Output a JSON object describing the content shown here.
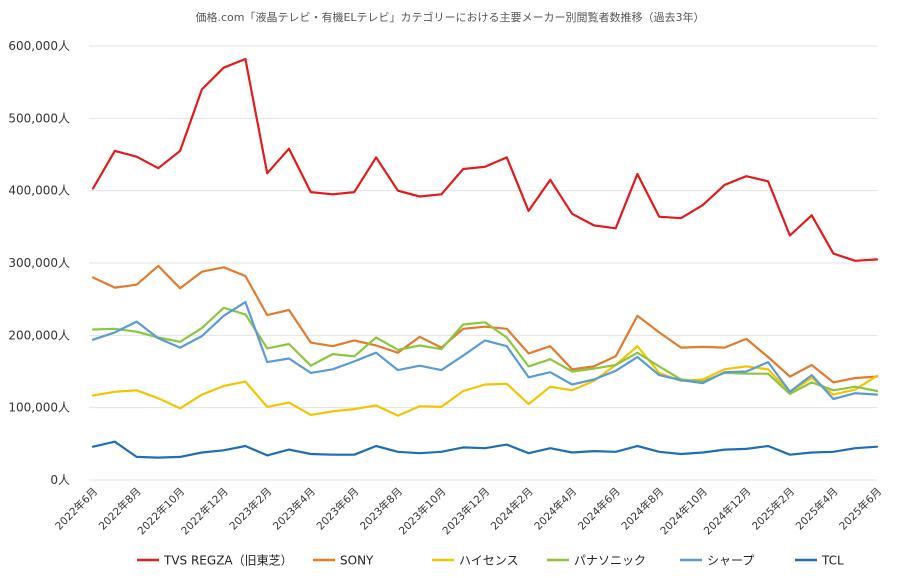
{
  "chart_data": {
    "type": "line",
    "title": "価格.com「液晶テレビ・有機ELテレビ」カテゴリーにおける主要メーカー別閲覧者数推移（過去3年）",
    "y_unit_suffix": "人",
    "ylim": [
      0,
      600000
    ],
    "y_ticks": [
      0,
      100000,
      200000,
      300000,
      400000,
      500000,
      600000
    ],
    "y_tick_labels": [
      "0人",
      "100,000人",
      "200,000人",
      "300,000人",
      "400,000人",
      "500,000人",
      "600,000人"
    ],
    "grid": true,
    "legend_position": "bottom",
    "x": [
      "2022年6月",
      "2022年7月",
      "2022年8月",
      "2022年9月",
      "2022年10月",
      "2022年11月",
      "2022年12月",
      "2023年1月",
      "2023年2月",
      "2023年3月",
      "2023年4月",
      "2023年5月",
      "2023年6月",
      "2023年7月",
      "2023年8月",
      "2023年9月",
      "2023年10月",
      "2023年11月",
      "2023年12月",
      "2024年1月",
      "2024年2月",
      "2024年3月",
      "2024年4月",
      "2024年5月",
      "2024年6月",
      "2024年7月",
      "2024年8月",
      "2024年9月",
      "2024年10月",
      "2024年11月",
      "2024年12月",
      "2025年1月",
      "2025年2月",
      "2025年3月",
      "2025年4月",
      "2025年5月",
      "2025年6月"
    ],
    "x_tick_labels": [
      "2022年6月",
      "2022年8月",
      "2022年10月",
      "2022年12月",
      "2023年2月",
      "2023年4月",
      "2023年6月",
      "2023年8月",
      "2023年10月",
      "2023年12月",
      "2024年2月",
      "2024年4月",
      "2024年6月",
      "2024年8月",
      "2024年10月",
      "2024年12月",
      "2025年2月",
      "2025年4月",
      "2025年6月"
    ],
    "series": [
      {
        "name": "TVS REGZA（旧東芝）",
        "color": "#e31a1c",
        "values": [
          403000,
          455000,
          447000,
          431000,
          455000,
          540000,
          570000,
          582000,
          424000,
          458000,
          398000,
          395000,
          398000,
          446000,
          400000,
          392000,
          395000,
          430000,
          433000,
          446000,
          372000,
          415000,
          368000,
          352000,
          348000,
          423000,
          364000,
          362000,
          380000,
          408000,
          420000,
          413000,
          338000,
          366000,
          313000,
          303000,
          305000
        ]
      },
      {
        "name": "SONY",
        "color": "#e07b30",
        "values": [
          280000,
          266000,
          270000,
          296000,
          265000,
          288000,
          294000,
          282000,
          228000,
          235000,
          190000,
          185000,
          193000,
          186000,
          176000,
          198000,
          183000,
          209000,
          212000,
          209000,
          175000,
          185000,
          153000,
          157000,
          171000,
          227000,
          204000,
          183000,
          184000,
          183000,
          195000,
          170000,
          143000,
          159000,
          135000,
          141000,
          143000
        ]
      },
      {
        "name": "ハイセンス",
        "color": "#f5c400",
        "values": [
          117000,
          122000,
          124000,
          113000,
          99000,
          118000,
          130000,
          136000,
          101000,
          107000,
          90000,
          95000,
          98000,
          103000,
          89000,
          102000,
          101000,
          123000,
          132000,
          133000,
          105000,
          129000,
          124000,
          137000,
          159000,
          185000,
          148000,
          137000,
          139000,
          153000,
          157000,
          153000,
          121000,
          141000,
          118000,
          125000,
          144000
        ]
      },
      {
        "name": "パナソニック",
        "color": "#8cc63f",
        "values": [
          208000,
          209000,
          205000,
          197000,
          191000,
          210000,
          238000,
          229000,
          182000,
          188000,
          158000,
          174000,
          171000,
          197000,
          180000,
          186000,
          181000,
          215000,
          218000,
          197000,
          157000,
          167000,
          150000,
          154000,
          159000,
          176000,
          157000,
          139000,
          136000,
          148000,
          147000,
          147000,
          119000,
          135000,
          124000,
          129000,
          123000
        ]
      },
      {
        "name": "シャープ",
        "color": "#5b9bd5",
        "values": [
          194000,
          204000,
          219000,
          196000,
          183000,
          199000,
          227000,
          246000,
          163000,
          168000,
          148000,
          153000,
          164000,
          176000,
          152000,
          158000,
          152000,
          172000,
          193000,
          185000,
          142000,
          149000,
          132000,
          139000,
          151000,
          170000,
          145000,
          138000,
          134000,
          149000,
          150000,
          163000,
          122000,
          145000,
          112000,
          120000,
          118000
        ]
      },
      {
        "name": "TCL",
        "color": "#1f6db5",
        "values": [
          46000,
          53000,
          32000,
          31000,
          32000,
          38000,
          41000,
          47000,
          34000,
          42000,
          36000,
          35000,
          35000,
          47000,
          39000,
          37000,
          39000,
          45000,
          44000,
          49000,
          37000,
          44000,
          38000,
          40000,
          39000,
          47000,
          39000,
          36000,
          38000,
          42000,
          43000,
          47000,
          35000,
          38000,
          39000,
          44000,
          46000
        ]
      }
    ]
  }
}
